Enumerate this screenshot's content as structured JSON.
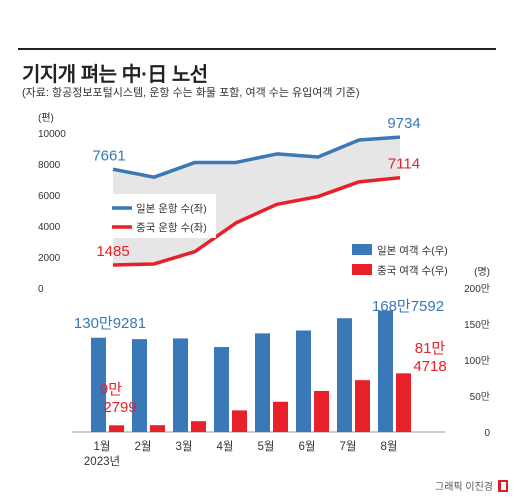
{
  "title": "기지개 펴는 中·日 노선",
  "subtitle": "(자료: 항공정보포털시스템, 운항 수는 화물 포함, 여객 수는 유입여객 기준)",
  "credit": "그래픽 이진경",
  "colors": {
    "japan": "#3a78b7",
    "china": "#e8202a",
    "band": "#e6e6e6",
    "axis": "#999999"
  },
  "chart_data": [
    {
      "type": "line",
      "categories": [
        "1월",
        "2월",
        "3월",
        "4월",
        "5월",
        "6월",
        "7월",
        "8월"
      ],
      "ylabel": "(편)",
      "ylim": [
        0,
        10000
      ],
      "yticks": [
        "0",
        "2000",
        "4000",
        "6000",
        "8000",
        "10000"
      ],
      "legend_position": "center-left",
      "series": [
        {
          "name": "일본 운항 수(좌)",
          "values": [
            7661,
            7150,
            8100,
            8100,
            8650,
            8450,
            9550,
            9734
          ]
        },
        {
          "name": "중국 운항 수(좌)",
          "values": [
            1485,
            1550,
            2350,
            4200,
            5400,
            5900,
            6850,
            7114
          ]
        }
      ],
      "labels": {
        "japan_first": "7661",
        "japan_last": "9734",
        "china_first": "1485",
        "china_last": "7114"
      }
    },
    {
      "type": "bar",
      "categories": [
        "1월",
        "2월",
        "3월",
        "4월",
        "5월",
        "6월",
        "7월",
        "8월"
      ],
      "year_label": "2023년",
      "ylabel": "(명)",
      "ylim": [
        0,
        2000000
      ],
      "yticks": [
        "0",
        "50만",
        "100만",
        "150만",
        "200만"
      ],
      "legend_position": "top-right",
      "series": [
        {
          "name": "일본 여객 수(우)",
          "values": [
            1309281,
            1290000,
            1300000,
            1180000,
            1370000,
            1410000,
            1580000,
            1687592
          ]
        },
        {
          "name": "중국 여객 수(우)",
          "values": [
            92799,
            95000,
            150000,
            300000,
            420000,
            570000,
            720000,
            814718
          ]
        }
      ],
      "labels": {
        "japan_first": "130만9281",
        "japan_last": "168만7592",
        "china_first_1": "9만",
        "china_first_2": "2799",
        "china_last_1": "81만",
        "china_last_2": "4718"
      }
    }
  ]
}
